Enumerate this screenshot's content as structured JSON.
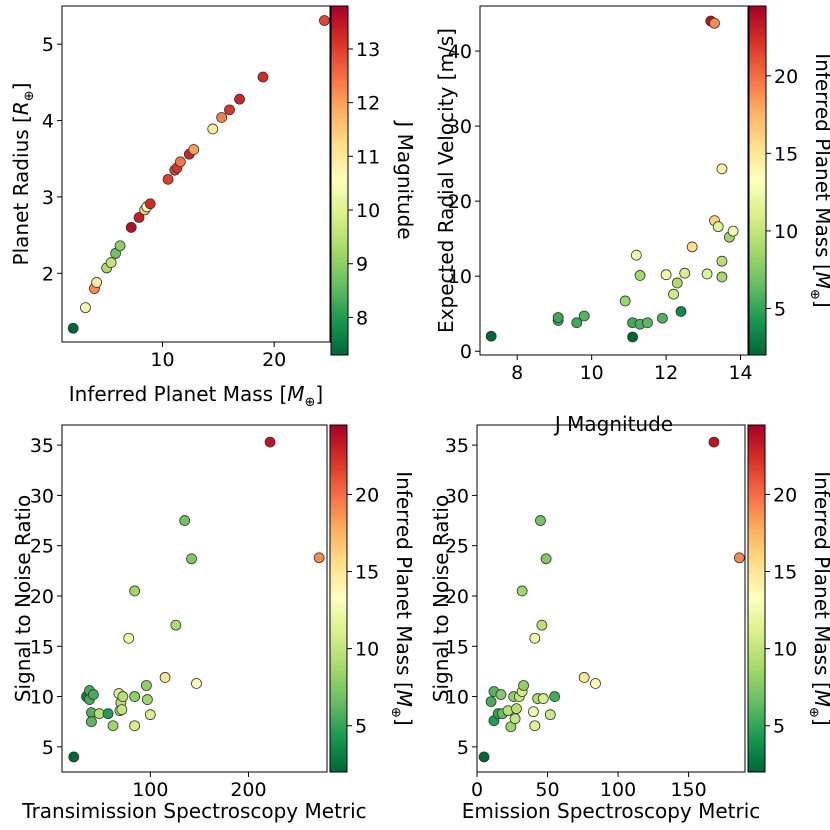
{
  "colormap": [
    "#006837",
    "#1a9850",
    "#66bd63",
    "#a6d96a",
    "#d9ef8b",
    "#ffffbf",
    "#fee08b",
    "#fdae61",
    "#f46d43",
    "#d73027",
    "#a50026"
  ],
  "chart_data": [
    {
      "id": "radius-vs-mass",
      "type": "scatter",
      "xlabel": "Inferred Planet Mass [",
      "xlabel_math": "M",
      "xlabel_tail": "]",
      "ylabel": "Planet Radius [",
      "ylabel_math": "R",
      "ylabel_tail": "]",
      "subscript": "⊕",
      "xlim": [
        1.0,
        25.0
      ],
      "ylim": [
        1.1,
        5.5
      ],
      "xticks": [
        10,
        20
      ],
      "yticks": [
        2,
        3,
        4,
        5
      ],
      "colorbar": {
        "label": "J Magnitude",
        "range": [
          7.3,
          13.8
        ],
        "ticks": [
          8,
          9,
          10,
          11,
          12,
          13
        ]
      },
      "points": [
        {
          "x": 2.0,
          "y": 1.28,
          "c": 7.3
        },
        {
          "x": 3.1,
          "y": 1.55,
          "c": 10.3
        },
        {
          "x": 3.9,
          "y": 1.8,
          "c": 12.2
        },
        {
          "x": 4.1,
          "y": 1.88,
          "c": 10.9
        },
        {
          "x": 5.0,
          "y": 2.07,
          "c": 9.3
        },
        {
          "x": 5.4,
          "y": 2.14,
          "c": 9.6
        },
        {
          "x": 5.8,
          "y": 2.26,
          "c": 8.7
        },
        {
          "x": 6.2,
          "y": 2.36,
          "c": 9.0
        },
        {
          "x": 7.2,
          "y": 2.6,
          "c": 13.6
        },
        {
          "x": 7.9,
          "y": 2.73,
          "c": 13.4
        },
        {
          "x": 8.4,
          "y": 2.83,
          "c": 11.5
        },
        {
          "x": 8.6,
          "y": 2.87,
          "c": 10.5
        },
        {
          "x": 8.9,
          "y": 2.91,
          "c": 13.2
        },
        {
          "x": 10.5,
          "y": 3.23,
          "c": 13.0
        },
        {
          "x": 11.1,
          "y": 3.35,
          "c": 12.9
        },
        {
          "x": 11.3,
          "y": 3.38,
          "c": 13.1
        },
        {
          "x": 11.6,
          "y": 3.46,
          "c": 12.4
        },
        {
          "x": 12.4,
          "y": 3.56,
          "c": 13.3
        },
        {
          "x": 12.8,
          "y": 3.62,
          "c": 12.0
        },
        {
          "x": 14.5,
          "y": 3.89,
          "c": 11.0
        },
        {
          "x": 15.3,
          "y": 4.04,
          "c": 12.3
        },
        {
          "x": 16.0,
          "y": 4.14,
          "c": 13.1
        },
        {
          "x": 16.9,
          "y": 4.28,
          "c": 13.3
        },
        {
          "x": 19.0,
          "y": 4.57,
          "c": 13.2
        },
        {
          "x": 24.5,
          "y": 5.31,
          "c": 12.9
        }
      ]
    },
    {
      "id": "rv-vs-jmag",
      "type": "scatter",
      "xlabel": "J Magnitude",
      "ylabel": "Expected Radial Velocity [m/s]",
      "xlim": [
        7.0,
        14.2
      ],
      "ylim": [
        -0.5,
        46.0
      ],
      "xticks": [
        8,
        10,
        12,
        14
      ],
      "yticks": [
        0,
        10,
        20,
        30,
        40
      ],
      "colorbar": {
        "label": "Inferred Planet Mass [",
        "label_math": "M",
        "label_tail": "]",
        "range": [
          2.0,
          24.5
        ],
        "ticks": [
          5,
          10,
          15,
          20
        ]
      },
      "points": [
        {
          "x": 7.3,
          "y": 2.0,
          "c": 2.0
        },
        {
          "x": 9.1,
          "y": 4.1,
          "c": 5.0
        },
        {
          "x": 9.1,
          "y": 4.5,
          "c": 5.2
        },
        {
          "x": 9.6,
          "y": 3.8,
          "c": 5.4
        },
        {
          "x": 9.8,
          "y": 4.7,
          "c": 6.0
        },
        {
          "x": 10.9,
          "y": 6.7,
          "c": 8.4
        },
        {
          "x": 11.1,
          "y": 1.9,
          "c": 2.0
        },
        {
          "x": 11.1,
          "y": 3.8,
          "c": 5.5
        },
        {
          "x": 11.2,
          "y": 12.8,
          "c": 12.5
        },
        {
          "x": 11.3,
          "y": 3.6,
          "c": 5.8
        },
        {
          "x": 11.3,
          "y": 10.1,
          "c": 8.6
        },
        {
          "x": 11.5,
          "y": 3.8,
          "c": 6.2
        },
        {
          "x": 11.9,
          "y": 4.4,
          "c": 5.8
        },
        {
          "x": 12.0,
          "y": 10.2,
          "c": 12.5
        },
        {
          "x": 12.2,
          "y": 7.6,
          "c": 10.5
        },
        {
          "x": 12.3,
          "y": 9.1,
          "c": 9.0
        },
        {
          "x": 12.4,
          "y": 5.3,
          "c": 3.5
        },
        {
          "x": 12.5,
          "y": 10.4,
          "c": 11.0
        },
        {
          "x": 12.7,
          "y": 13.9,
          "c": 15.5
        },
        {
          "x": 13.1,
          "y": 10.3,
          "c": 11.5
        },
        {
          "x": 13.2,
          "y": 44.0,
          "c": 23.5
        },
        {
          "x": 13.3,
          "y": 43.7,
          "c": 19.0
        },
        {
          "x": 13.3,
          "y": 17.4,
          "c": 16.0
        },
        {
          "x": 13.4,
          "y": 16.6,
          "c": 11.5
        },
        {
          "x": 13.5,
          "y": 12.0,
          "c": 9.5
        },
        {
          "x": 13.5,
          "y": 9.9,
          "c": 8.8
        },
        {
          "x": 13.5,
          "y": 24.3,
          "c": 14.5
        },
        {
          "x": 13.7,
          "y": 15.2,
          "c": 8.5
        },
        {
          "x": 13.8,
          "y": 16.0,
          "c": 12.5
        }
      ]
    },
    {
      "id": "snr-vs-tsm",
      "type": "scatter",
      "xlabel": "Transimission Spectroscopy Metric",
      "ylabel": "Signal to Noise Ratio",
      "xlim": [
        10,
        280
      ],
      "ylim": [
        2.5,
        37.0
      ],
      "xticks": [
        100,
        200
      ],
      "yticks": [
        5,
        10,
        15,
        20,
        25,
        30,
        35
      ],
      "colorbar": {
        "label": "Inferred Planet Mass [",
        "label_math": "M",
        "label_tail": "]",
        "range": [
          2.0,
          24.5
        ],
        "ticks": [
          5,
          10,
          15,
          20
        ]
      },
      "points": [
        {
          "x": 22,
          "y": 4.0,
          "c": 2.0
        },
        {
          "x": 35,
          "y": 10.0,
          "c": 3.0
        },
        {
          "x": 38,
          "y": 10.6,
          "c": 5.5
        },
        {
          "x": 38,
          "y": 9.7,
          "c": 5.5
        },
        {
          "x": 40,
          "y": 8.4,
          "c": 5.8
        },
        {
          "x": 40,
          "y": 7.5,
          "c": 6.2
        },
        {
          "x": 42,
          "y": 10.2,
          "c": 5.5
        },
        {
          "x": 48,
          "y": 8.3,
          "c": 9.5
        },
        {
          "x": 57,
          "y": 8.3,
          "c": 4.5
        },
        {
          "x": 62,
          "y": 7.1,
          "c": 8.5
        },
        {
          "x": 68,
          "y": 10.3,
          "c": 11.5
        },
        {
          "x": 69,
          "y": 8.6,
          "c": 9.5
        },
        {
          "x": 70,
          "y": 9.4,
          "c": 9.5
        },
        {
          "x": 71,
          "y": 8.7,
          "c": 10.0
        },
        {
          "x": 72,
          "y": 10.0,
          "c": 9.5
        },
        {
          "x": 78,
          "y": 15.8,
          "c": 12.5
        },
        {
          "x": 84,
          "y": 20.5,
          "c": 8.6
        },
        {
          "x": 84,
          "y": 10.0,
          "c": 8.0
        },
        {
          "x": 84,
          "y": 7.1,
          "c": 11.0
        },
        {
          "x": 96,
          "y": 11.1,
          "c": 8.0
        },
        {
          "x": 97,
          "y": 9.7,
          "c": 8.5
        },
        {
          "x": 100,
          "y": 8.2,
          "c": 11.0
        },
        {
          "x": 115,
          "y": 11.9,
          "c": 15.0
        },
        {
          "x": 126,
          "y": 17.1,
          "c": 9.0
        },
        {
          "x": 135,
          "y": 27.5,
          "c": 7.0
        },
        {
          "x": 142,
          "y": 23.7,
          "c": 7.5
        },
        {
          "x": 147,
          "y": 11.3,
          "c": 13.0
        },
        {
          "x": 222,
          "y": 35.3,
          "c": 23.5
        },
        {
          "x": 272,
          "y": 23.8,
          "c": 19.0
        }
      ]
    },
    {
      "id": "snr-vs-esm",
      "type": "scatter",
      "xlabel": "Emission Spectroscopy Metric",
      "ylabel": "Signal to Noise Ratio",
      "xlim": [
        0,
        190
      ],
      "ylim": [
        2.5,
        37.0
      ],
      "xticks": [
        0,
        50,
        100,
        150
      ],
      "yticks": [
        5,
        10,
        15,
        20,
        25,
        30,
        35
      ],
      "colorbar": {
        "label": "Inferred Planet Mass [",
        "label_math": "M",
        "label_tail": "]",
        "range": [
          2.0,
          24.5
        ],
        "ticks": [
          5,
          10,
          15,
          20
        ]
      },
      "points": [
        {
          "x": 5,
          "y": 4.0,
          "c": 2.0
        },
        {
          "x": 10,
          "y": 9.5,
          "c": 5.5
        },
        {
          "x": 12,
          "y": 10.5,
          "c": 6.0
        },
        {
          "x": 12,
          "y": 7.6,
          "c": 4.5
        },
        {
          "x": 15,
          "y": 8.3,
          "c": 5.0
        },
        {
          "x": 17,
          "y": 10.2,
          "c": 7.5
        },
        {
          "x": 18,
          "y": 8.3,
          "c": 6.5
        },
        {
          "x": 22,
          "y": 8.6,
          "c": 9.5
        },
        {
          "x": 24,
          "y": 7.0,
          "c": 8.5
        },
        {
          "x": 26,
          "y": 10.0,
          "c": 8.0
        },
        {
          "x": 27,
          "y": 7.8,
          "c": 10.0
        },
        {
          "x": 28,
          "y": 8.8,
          "c": 9.5
        },
        {
          "x": 30,
          "y": 10.0,
          "c": 10.0
        },
        {
          "x": 32,
          "y": 20.5,
          "c": 8.6
        },
        {
          "x": 32,
          "y": 10.5,
          "c": 11.0
        },
        {
          "x": 33,
          "y": 11.1,
          "c": 8.0
        },
        {
          "x": 40,
          "y": 8.5,
          "c": 12.5
        },
        {
          "x": 41,
          "y": 7.1,
          "c": 11.5
        },
        {
          "x": 41,
          "y": 15.8,
          "c": 12.5
        },
        {
          "x": 43,
          "y": 9.8,
          "c": 9.0
        },
        {
          "x": 45,
          "y": 27.5,
          "c": 7.0
        },
        {
          "x": 46,
          "y": 17.1,
          "c": 9.5
        },
        {
          "x": 47,
          "y": 9.8,
          "c": 11.0
        },
        {
          "x": 49,
          "y": 23.7,
          "c": 7.5
        },
        {
          "x": 52,
          "y": 8.2,
          "c": 10.5
        },
        {
          "x": 55,
          "y": 10.0,
          "c": 5.5
        },
        {
          "x": 76,
          "y": 11.9,
          "c": 15.0
        },
        {
          "x": 84,
          "y": 11.3,
          "c": 13.0
        },
        {
          "x": 168,
          "y": 35.3,
          "c": 23.5
        },
        {
          "x": 186,
          "y": 23.8,
          "c": 19.0
        }
      ]
    }
  ]
}
